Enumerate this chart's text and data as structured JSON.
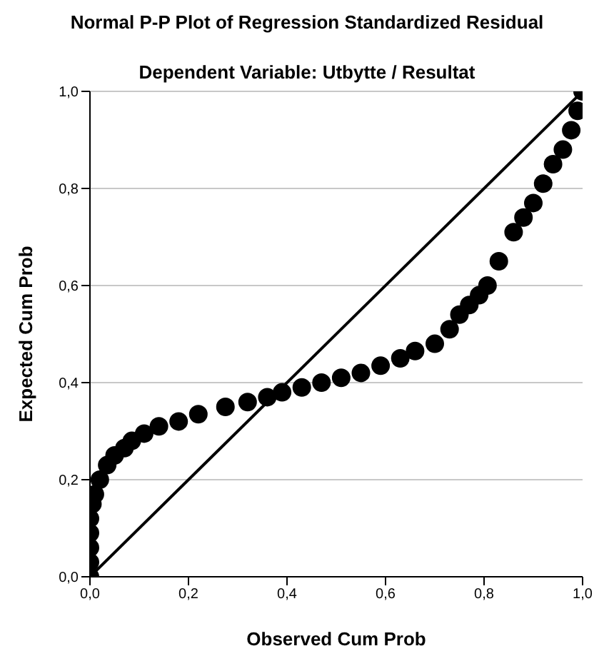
{
  "chart_data": {
    "type": "scatter",
    "title": "Normal P-P Plot of Regression Standardized Residual",
    "subtitle": "Dependent Variable: Utbytte / Resultat",
    "xlabel": "Observed Cum Prob",
    "ylabel": "Expected Cum Prob",
    "xlim": [
      0,
      1
    ],
    "ylim": [
      0,
      1
    ],
    "xticks": [
      {
        "value": 0,
        "label": "0,0"
      },
      {
        "value": 0.2,
        "label": "0,2"
      },
      {
        "value": 0.4,
        "label": "0,4"
      },
      {
        "value": 0.6,
        "label": "0,6"
      },
      {
        "value": 0.8,
        "label": "0,8"
      },
      {
        "value": 1,
        "label": "1,0"
      }
    ],
    "yticks": [
      {
        "value": 0,
        "label": "0,0"
      },
      {
        "value": 0.2,
        "label": "0,2"
      },
      {
        "value": 0.4,
        "label": "0,4"
      },
      {
        "value": 0.6,
        "label": "0,6"
      },
      {
        "value": 0.8,
        "label": "0,8"
      },
      {
        "value": 1,
        "label": "1,0"
      }
    ],
    "grid": "y",
    "series": [
      {
        "marker": "circle",
        "color": "#000000",
        "x": [
          0,
          0,
          0,
          0,
          0,
          0.005,
          0.01,
          0.02,
          0.035,
          0.05,
          0.07,
          0.085,
          0.11,
          0.14,
          0.18,
          0.22,
          0.275,
          0.32,
          0.36,
          0.39,
          0.43,
          0.47,
          0.51,
          0.55,
          0.59,
          0.63,
          0.66,
          0.7,
          0.73,
          0.75,
          0.77,
          0.79,
          0.807,
          0.83,
          0.86,
          0.88,
          0.9,
          0.92,
          0.94,
          0.96,
          0.977,
          0.99,
          1
        ],
        "values": [
          0,
          0.03,
          0.06,
          0.09,
          0.12,
          0.15,
          0.17,
          0.2,
          0.23,
          0.25,
          0.265,
          0.28,
          0.295,
          0.31,
          0.32,
          0.335,
          0.35,
          0.36,
          0.37,
          0.38,
          0.39,
          0.4,
          0.41,
          0.42,
          0.435,
          0.45,
          0.465,
          0.48,
          0.51,
          0.54,
          0.56,
          0.58,
          0.6,
          0.65,
          0.71,
          0.74,
          0.77,
          0.81,
          0.85,
          0.88,
          0.92,
          0.96,
          1
        ]
      },
      {
        "type": "line",
        "marker": "none",
        "color": "#000000",
        "x": [
          0,
          1
        ],
        "values": [
          0,
          1
        ]
      }
    ]
  }
}
